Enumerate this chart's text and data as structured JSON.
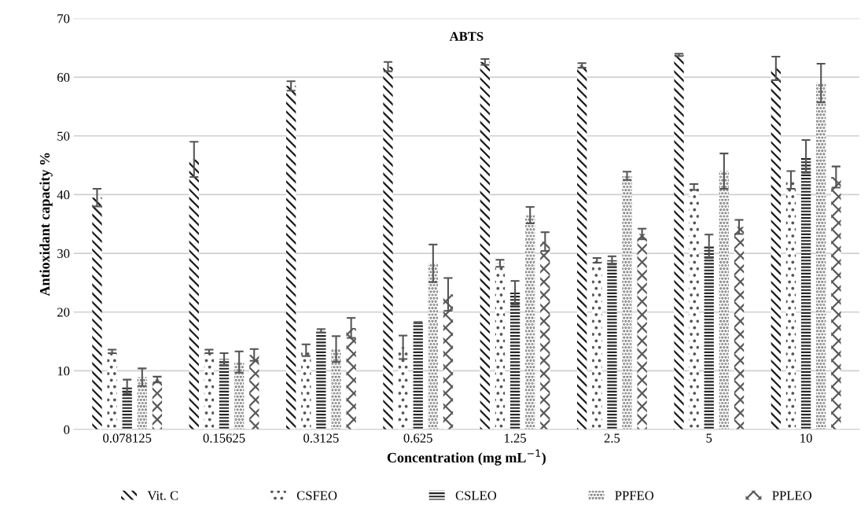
{
  "chart_data": {
    "type": "bar",
    "title": "ABTS",
    "xlabel": "Concentration (mg mL$^{−1}$)",
    "ylabel": "Antioxidant capacity %",
    "categories": [
      "0.078125",
      "0.15625",
      "0.3125",
      "0.625",
      "1.25",
      "2.5",
      "5",
      "10"
    ],
    "series": [
      {
        "name": "Vit. C",
        "color": "#1a1a1a",
        "values": [
          39.5,
          46,
          58.5,
          61.8,
          62.6,
          62,
          63.8,
          61.5
        ],
        "errors": [
          1.5,
          3,
          0.8,
          0.8,
          0.5,
          0.4,
          0.2,
          2
        ]
      },
      {
        "name": "CSFEO",
        "color": "#555555",
        "values": [
          13.3,
          13.3,
          13.5,
          14,
          28.3,
          28.8,
          41.3,
          42.5
        ],
        "errors": [
          0.3,
          0.3,
          1,
          2,
          0.6,
          0.4,
          0.5,
          1.5
        ]
      },
      {
        "name": "CSLEO",
        "color": "#262626",
        "values": [
          7.3,
          12,
          16.8,
          18.2,
          23.3,
          28.8,
          31.2,
          46.5
        ],
        "errors": [
          1.2,
          1,
          0.3,
          0.1,
          2,
          0.7,
          2,
          2.8
        ]
      },
      {
        "name": "PPFEO",
        "color": "#666666",
        "values": [
          8.9,
          11.5,
          13.7,
          28.3,
          36.5,
          43.2,
          44,
          59
        ],
        "errors": [
          1.5,
          1.8,
          2.2,
          3.2,
          1.4,
          0.7,
          3,
          3.3
        ]
      },
      {
        "name": "PPLEO",
        "color": "#595959",
        "values": [
          8.5,
          12.7,
          17.3,
          23,
          32,
          33.3,
          34.5,
          43
        ],
        "errors": [
          0.5,
          1,
          1.7,
          2.8,
          1.6,
          0.9,
          1.2,
          1.8
        ]
      }
    ],
    "ylim": [
      0,
      70
    ],
    "yticks": [
      0,
      10,
      20,
      30,
      40,
      50,
      60,
      70
    ],
    "grid": "y",
    "legend": "bottom"
  }
}
